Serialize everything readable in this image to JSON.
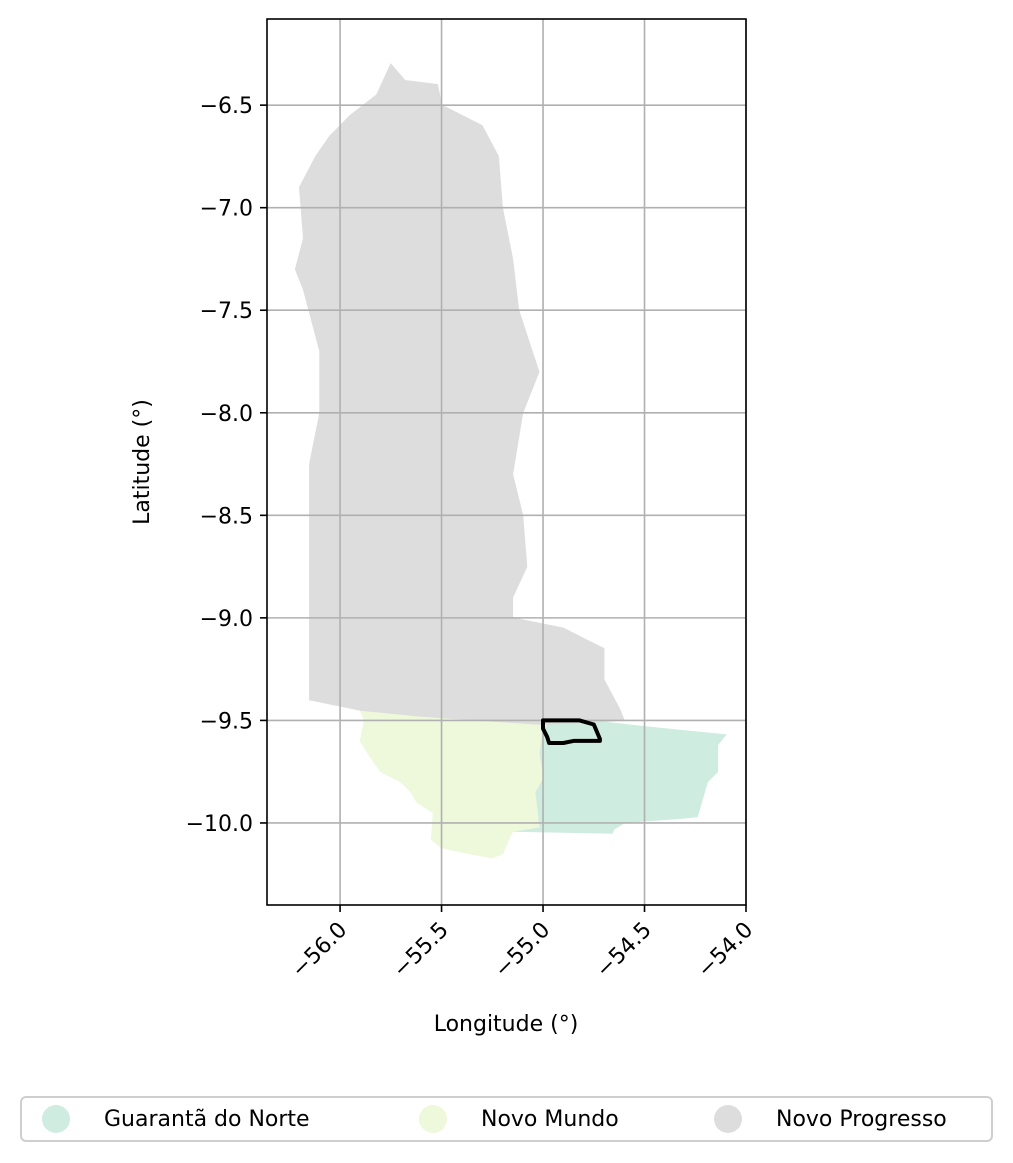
{
  "chart_data": {
    "type": "choropleth-map",
    "xlabel": "Longitude (°)",
    "ylabel": "Latitude (°)",
    "xlim": [
      -56.36,
      -54.0
    ],
    "ylim": [
      -10.4,
      -6.08
    ],
    "x_ticks": [
      -56.0,
      -55.5,
      -55.0,
      -54.5,
      -54.0
    ],
    "x_tick_labels": [
      "−56.0",
      "−55.5",
      "−55.0",
      "−54.5",
      "−54.0"
    ],
    "y_ticks": [
      -6.5,
      -7.0,
      -7.5,
      -8.0,
      -8.5,
      -9.0,
      -9.5,
      -10.0
    ],
    "y_tick_labels": [
      "−6.5",
      "−7.0",
      "−7.5",
      "−8.0",
      "−8.5",
      "−9.0",
      "−9.5",
      "−10.0"
    ],
    "grid": true,
    "legend_position": "bottom",
    "regions": [
      {
        "name": "Guarantã do Norte",
        "color": "#cfece0",
        "outline": [
          [
            -54.92,
            -9.48
          ],
          [
            -54.78,
            -9.5
          ],
          [
            -54.5,
            -9.53
          ],
          [
            -54.3,
            -9.55
          ],
          [
            -54.1,
            -9.57
          ],
          [
            -54.14,
            -9.62
          ],
          [
            -54.14,
            -9.75
          ],
          [
            -54.19,
            -9.8
          ],
          [
            -54.24,
            -9.97
          ],
          [
            -54.35,
            -9.98
          ],
          [
            -54.5,
            -9.99
          ],
          [
            -54.6,
            -10.0
          ],
          [
            -54.65,
            -10.03
          ],
          [
            -54.66,
            -10.05
          ],
          [
            -55.15,
            -10.04
          ],
          [
            -55.02,
            -10.02
          ],
          [
            -55.04,
            -9.85
          ],
          [
            -55.0,
            -9.78
          ],
          [
            -55.02,
            -9.66
          ],
          [
            -55.0,
            -9.54
          ]
        ]
      },
      {
        "name": "Novo Mundo",
        "color": "#eef8da",
        "outline": [
          [
            -55.9,
            -9.45
          ],
          [
            -55.6,
            -9.48
          ],
          [
            -55.3,
            -9.5
          ],
          [
            -55.0,
            -9.52
          ],
          [
            -55.02,
            -9.66
          ],
          [
            -55.0,
            -9.78
          ],
          [
            -55.04,
            -9.85
          ],
          [
            -55.02,
            -10.02
          ],
          [
            -55.15,
            -10.04
          ],
          [
            -55.2,
            -10.15
          ],
          [
            -55.25,
            -10.17
          ],
          [
            -55.36,
            -10.15
          ],
          [
            -55.5,
            -10.12
          ],
          [
            -55.55,
            -10.08
          ],
          [
            -55.54,
            -9.95
          ],
          [
            -55.62,
            -9.9
          ],
          [
            -55.65,
            -9.85
          ],
          [
            -55.7,
            -9.8
          ],
          [
            -55.8,
            -9.75
          ],
          [
            -55.85,
            -9.68
          ],
          [
            -55.9,
            -9.6
          ],
          [
            -55.88,
            -9.5
          ]
        ]
      },
      {
        "name": "Novo Progresso",
        "color": "#dddddd",
        "outline": [
          [
            -55.75,
            -6.3
          ],
          [
            -55.68,
            -6.38
          ],
          [
            -55.52,
            -6.4
          ],
          [
            -55.5,
            -6.5
          ],
          [
            -55.3,
            -6.6
          ],
          [
            -55.22,
            -6.75
          ],
          [
            -55.2,
            -7.0
          ],
          [
            -55.15,
            -7.25
          ],
          [
            -55.12,
            -7.5
          ],
          [
            -55.07,
            -7.65
          ],
          [
            -55.02,
            -7.8
          ],
          [
            -55.1,
            -8.0
          ],
          [
            -55.15,
            -8.3
          ],
          [
            -55.1,
            -8.5
          ],
          [
            -55.08,
            -8.75
          ],
          [
            -55.15,
            -8.9
          ],
          [
            -55.15,
            -9.0
          ],
          [
            -54.9,
            -9.05
          ],
          [
            -54.8,
            -9.1
          ],
          [
            -54.7,
            -9.15
          ],
          [
            -54.7,
            -9.3
          ],
          [
            -54.62,
            -9.45
          ],
          [
            -54.6,
            -9.5
          ],
          [
            -55.0,
            -9.52
          ],
          [
            -55.3,
            -9.5
          ],
          [
            -55.6,
            -9.48
          ],
          [
            -55.9,
            -9.45
          ],
          [
            -56.15,
            -9.4
          ],
          [
            -56.15,
            -8.25
          ],
          [
            -56.1,
            -8.0
          ],
          [
            -56.1,
            -7.7
          ],
          [
            -56.18,
            -7.4
          ],
          [
            -56.22,
            -7.3
          ],
          [
            -56.18,
            -7.15
          ],
          [
            -56.2,
            -6.9
          ],
          [
            -56.12,
            -6.75
          ],
          [
            -56.05,
            -6.65
          ],
          [
            -55.95,
            -6.55
          ],
          [
            -55.82,
            -6.45
          ]
        ]
      }
    ],
    "boundary_outline": [
      [
        -55.0,
        -9.5
      ],
      [
        -54.82,
        -9.5
      ],
      [
        -54.75,
        -9.52
      ],
      [
        -54.72,
        -9.59
      ],
      [
        -54.72,
        -9.6
      ],
      [
        -54.85,
        -9.6
      ],
      [
        -54.9,
        -9.61
      ],
      [
        -54.97,
        -9.61
      ],
      [
        -54.98,
        -9.58
      ],
      [
        -55.0,
        -9.54
      ]
    ]
  },
  "legend": {
    "items": [
      {
        "label": "Guarantã do Norte",
        "color": "#cfece0"
      },
      {
        "label": "Novo Mundo",
        "color": "#eef8da"
      },
      {
        "label": "Novo Progresso",
        "color": "#dddddd"
      }
    ]
  }
}
